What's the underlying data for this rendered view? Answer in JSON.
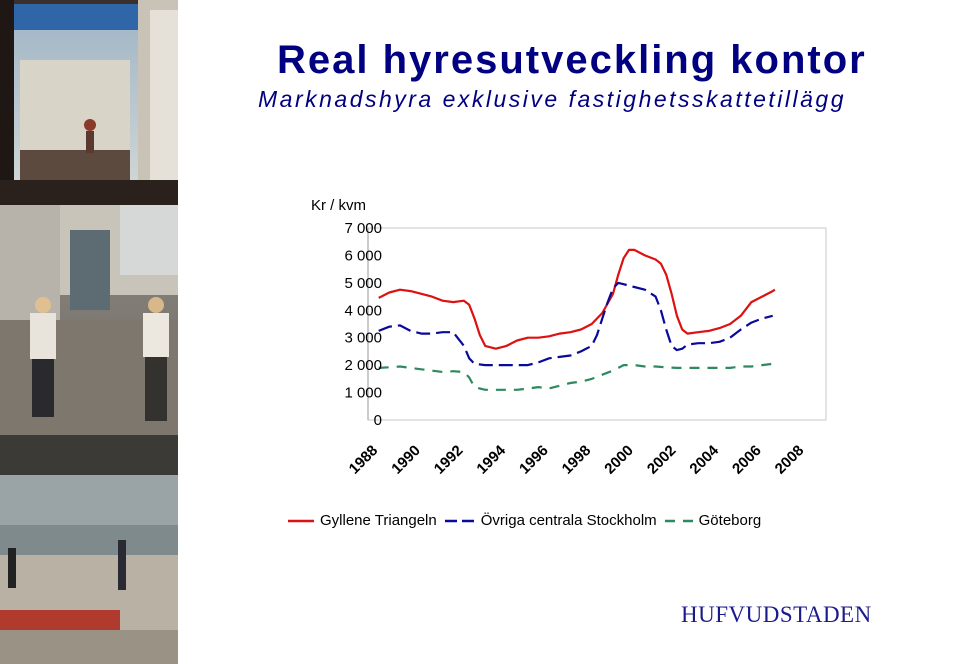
{
  "header": {
    "title": "Real hyresutveckling kontor",
    "subtitle": "Marknadshyra exklusive fastighetsskattetillägg"
  },
  "brand": {
    "logo_text": "HUFVUDSTADEN",
    "color": "#1a1a8c"
  },
  "photos": {
    "description_icon": "street-photo-collage"
  },
  "chart_data": {
    "type": "line",
    "title": "",
    "ylabel": "Kr / kvm",
    "xlabel": "",
    "ylim": [
      0,
      7000
    ],
    "xlim": [
      1987.5,
      2009.0
    ],
    "yticks": [
      0,
      1000,
      2000,
      3000,
      4000,
      5000,
      6000,
      7000
    ],
    "ytick_labels": [
      "0",
      "1 000",
      "2 000",
      "3 000",
      "4 000",
      "5 000",
      "6 000",
      "7 000"
    ],
    "xticks": [
      1988,
      1990,
      1992,
      1994,
      1996,
      1998,
      2000,
      2002,
      2004,
      2006,
      2008
    ],
    "xtick_labels": [
      "1988",
      "1990",
      "1992",
      "1994",
      "1996",
      "1998",
      "2000",
      "2002",
      "2004",
      "2006",
      "2008"
    ],
    "grid": false,
    "legend_position": "bottom",
    "series": [
      {
        "name": "Gyllene Triangeln",
        "color": "#dd1111",
        "dash": "solid",
        "points": [
          [
            1988,
            4450
          ],
          [
            1988.5,
            4650
          ],
          [
            1989,
            4750
          ],
          [
            1989.5,
            4700
          ],
          [
            1990,
            4600
          ],
          [
            1990.5,
            4500
          ],
          [
            1991,
            4350
          ],
          [
            1991.5,
            4300
          ],
          [
            1992,
            4350
          ],
          [
            1992.25,
            4200
          ],
          [
            1992.5,
            3700
          ],
          [
            1992.75,
            3100
          ],
          [
            1993,
            2700
          ],
          [
            1993.5,
            2600
          ],
          [
            1994,
            2700
          ],
          [
            1994.5,
            2900
          ],
          [
            1995,
            3000
          ],
          [
            1995.5,
            3000
          ],
          [
            1996,
            3050
          ],
          [
            1996.5,
            3150
          ],
          [
            1997,
            3200
          ],
          [
            1997.5,
            3300
          ],
          [
            1998,
            3500
          ],
          [
            1998.5,
            3900
          ],
          [
            1999,
            4600
          ],
          [
            1999.25,
            5300
          ],
          [
            1999.5,
            5900
          ],
          [
            1999.75,
            6200
          ],
          [
            2000,
            6200
          ],
          [
            2000.5,
            6000
          ],
          [
            2001,
            5850
          ],
          [
            2001.25,
            5700
          ],
          [
            2001.5,
            5300
          ],
          [
            2001.75,
            4600
          ],
          [
            2002,
            3800
          ],
          [
            2002.25,
            3300
          ],
          [
            2002.5,
            3150
          ],
          [
            2003,
            3200
          ],
          [
            2003.5,
            3250
          ],
          [
            2004,
            3350
          ],
          [
            2004.5,
            3500
          ],
          [
            2005,
            3800
          ],
          [
            2005.5,
            4300
          ],
          [
            2006,
            4500
          ],
          [
            2006.5,
            4700
          ],
          [
            2006.6,
            4750
          ]
        ]
      },
      {
        "name": "Övriga centrala Stockholm",
        "color": "#0a0a99",
        "dash": "long-dash",
        "points": [
          [
            1988,
            3250
          ],
          [
            1988.5,
            3400
          ],
          [
            1989,
            3450
          ],
          [
            1989.5,
            3250
          ],
          [
            1990,
            3150
          ],
          [
            1990.5,
            3150
          ],
          [
            1991,
            3200
          ],
          [
            1991.5,
            3200
          ],
          [
            1992,
            2700
          ],
          [
            1992.25,
            2250
          ],
          [
            1992.5,
            2050
          ],
          [
            1993,
            2000
          ],
          [
            1993.5,
            2000
          ],
          [
            1994,
            2000
          ],
          [
            1994.5,
            2000
          ],
          [
            1995,
            2000
          ],
          [
            1995.5,
            2100
          ],
          [
            1996,
            2250
          ],
          [
            1996.5,
            2300
          ],
          [
            1997,
            2350
          ],
          [
            1997.5,
            2500
          ],
          [
            1998,
            2700
          ],
          [
            1998.25,
            3100
          ],
          [
            1998.5,
            3700
          ],
          [
            1998.75,
            4300
          ],
          [
            1999,
            4800
          ],
          [
            1999.25,
            5000
          ],
          [
            1999.5,
            4950
          ],
          [
            2000,
            4850
          ],
          [
            2000.5,
            4750
          ],
          [
            2001,
            4500
          ],
          [
            2001.25,
            4000
          ],
          [
            2001.5,
            3300
          ],
          [
            2001.75,
            2700
          ],
          [
            2002,
            2550
          ],
          [
            2002.25,
            2600
          ],
          [
            2002.5,
            2750
          ],
          [
            2003,
            2800
          ],
          [
            2003.5,
            2800
          ],
          [
            2004,
            2850
          ],
          [
            2004.5,
            3000
          ],
          [
            2005,
            3300
          ],
          [
            2005.5,
            3550
          ],
          [
            2006,
            3700
          ],
          [
            2006.5,
            3800
          ]
        ]
      },
      {
        "name": "Göteborg",
        "color": "#2e8a5e",
        "dash": "dash",
        "points": [
          [
            1988,
            1900
          ],
          [
            1988.5,
            1920
          ],
          [
            1989,
            1950
          ],
          [
            1989.5,
            1900
          ],
          [
            1990,
            1850
          ],
          [
            1990.5,
            1800
          ],
          [
            1991,
            1750
          ],
          [
            1991.5,
            1780
          ],
          [
            1992,
            1750
          ],
          [
            1992.25,
            1550
          ],
          [
            1992.5,
            1200
          ],
          [
            1993,
            1100
          ],
          [
            1993.5,
            1100
          ],
          [
            1994,
            1100
          ],
          [
            1994.5,
            1100
          ],
          [
            1995,
            1150
          ],
          [
            1995.5,
            1200
          ],
          [
            1996,
            1150
          ],
          [
            1996.5,
            1250
          ],
          [
            1997,
            1350
          ],
          [
            1997.5,
            1400
          ],
          [
            1998,
            1500
          ],
          [
            1998.5,
            1650
          ],
          [
            1999,
            1800
          ],
          [
            1999.5,
            2000
          ],
          [
            2000,
            2000
          ],
          [
            2000.5,
            1950
          ],
          [
            2001,
            1950
          ],
          [
            2001.5,
            1920
          ],
          [
            2002,
            1900
          ],
          [
            2002.5,
            1900
          ],
          [
            2003,
            1900
          ],
          [
            2003.5,
            1900
          ],
          [
            2004,
            1900
          ],
          [
            2004.5,
            1900
          ],
          [
            2005,
            1950
          ],
          [
            2005.5,
            1950
          ],
          [
            2006,
            2000
          ],
          [
            2006.5,
            2050
          ]
        ]
      }
    ]
  }
}
